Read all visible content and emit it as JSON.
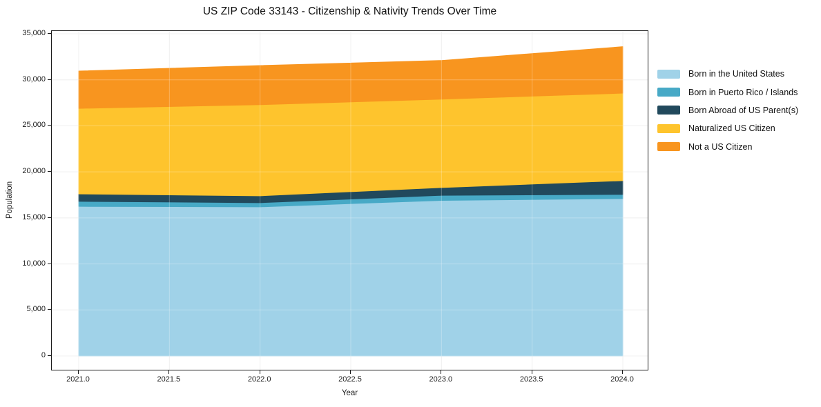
{
  "title": "US ZIP Code 33143 - Citizenship & Nativity Trends Over Time",
  "chart_data": {
    "type": "area",
    "stacked": true,
    "title": "US ZIP Code 33143 - Citizenship & Nativity Trends Over Time",
    "xlabel": "Year",
    "ylabel": "Population",
    "x": [
      2021,
      2022,
      2023,
      2024
    ],
    "series": [
      {
        "name": "Born in the United States",
        "color": "#a0d2e8",
        "values": [
          16250,
          16200,
          16900,
          17100
        ]
      },
      {
        "name": "Born in Puerto Rico / Islands",
        "color": "#47a9c6",
        "values": [
          550,
          450,
          550,
          450
        ]
      },
      {
        "name": "Born Abroad of US Parent(s)",
        "color": "#21495c",
        "values": [
          800,
          750,
          850,
          1500
        ]
      },
      {
        "name": "Naturalized US Citizen",
        "color": "#fec42d",
        "values": [
          9300,
          9900,
          9600,
          9500
        ]
      },
      {
        "name": "Not a US Citizen",
        "color": "#f8951f",
        "values": [
          4050,
          4250,
          4200,
          5050
        ]
      }
    ],
    "stacked_totals": [
      30950,
      31550,
      32100,
      33600
    ],
    "xlim": [
      2021,
      2024
    ],
    "ylim": [
      0,
      35000
    ],
    "x_tick_values": [
      2021,
      2021.5,
      2022,
      2022.5,
      2023,
      2023.5,
      2024
    ],
    "x_tick_labels": [
      "2021.0",
      "2021.5",
      "2022.0",
      "2022.5",
      "2023.0",
      "2023.5",
      "2024.0"
    ],
    "y_tick_values": [
      0,
      5000,
      10000,
      15000,
      20000,
      25000,
      30000,
      35000
    ],
    "y_tick_labels": [
      "0",
      "5,000",
      "10,000",
      "15,000",
      "20,000",
      "25,000",
      "30,000",
      "35,000"
    ],
    "grid": true,
    "legend_position": "outside-right"
  },
  "colors": {
    "background": "#ffffff",
    "grid": "#ebebeb",
    "grid_over_areas": "rgba(255,255,255,0.28)",
    "spine": "#1a1a1a",
    "text": "#1a1a1a"
  }
}
